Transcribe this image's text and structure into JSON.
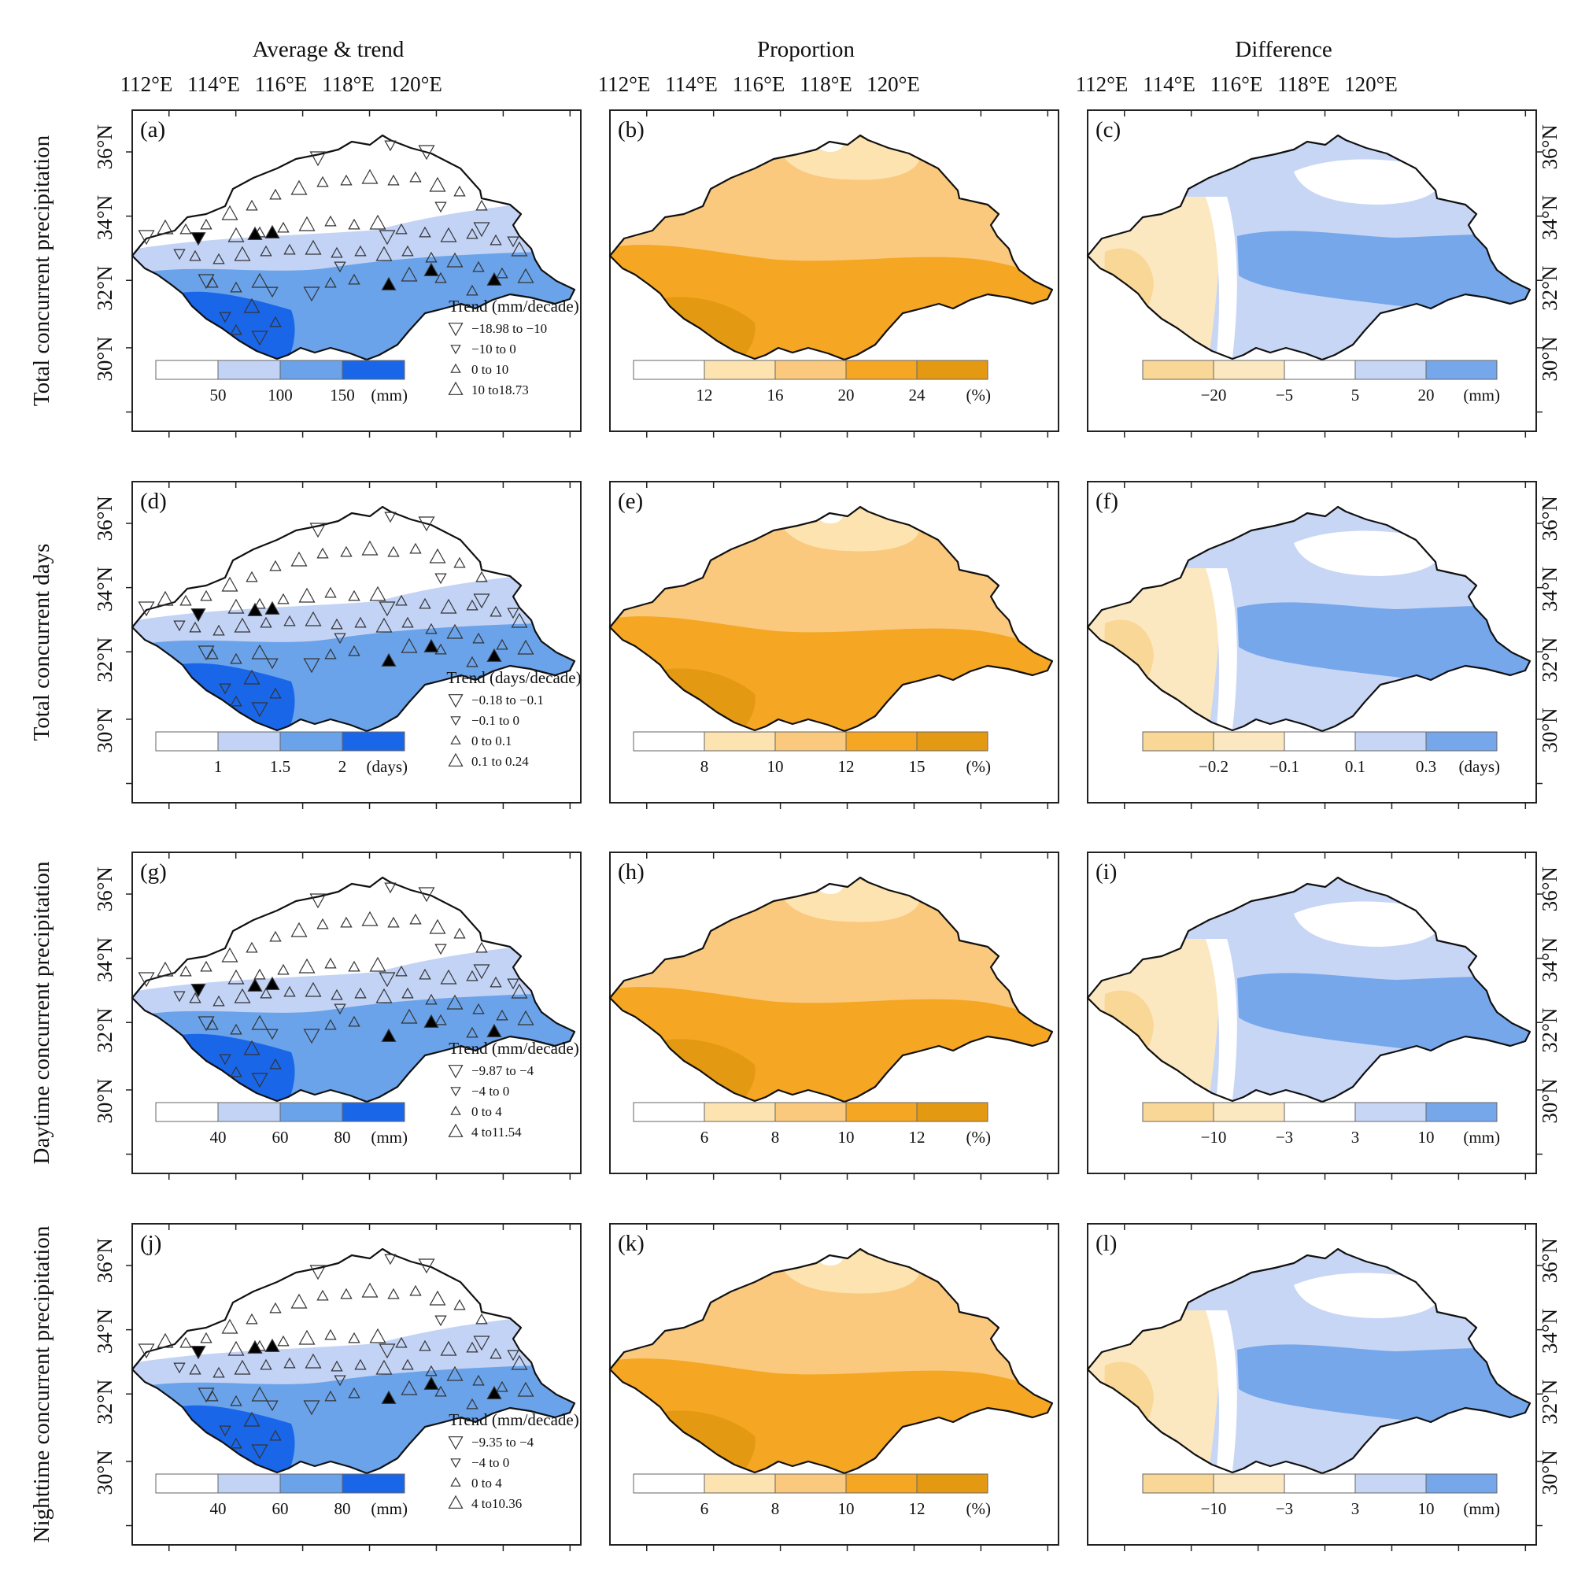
{
  "column_titles": [
    "Average & trend",
    "Proportion",
    "Difference"
  ],
  "row_titles": [
    "Total concurrent precipitation",
    "Total concurrent days",
    "Daytime concurrent precipitation",
    "Nighttime concurrent precipitation"
  ],
  "lon_ticks": [
    "112°E",
    "114°E",
    "116°E",
    "118°E",
    "120°E"
  ],
  "lat_ticks": [
    "36°N",
    "34°N",
    "32°N",
    "30°N"
  ],
  "colors": {
    "avg": [
      "#ffffff",
      "#c3d3f5",
      "#6aa3ea",
      "#1a66e8"
    ],
    "prop": [
      "#ffffff",
      "#fde3b0",
      "#fac97d",
      "#f5a623",
      "#e49912"
    ],
    "diff": [
      "#f9d796",
      "#fce8c0",
      "#ffffff",
      "#c8d6f5",
      "#76a7eb"
    ],
    "marker_sig": "#000000",
    "boundary": "#111111"
  },
  "panels": [
    {
      "label": "(a)",
      "kind": "avg",
      "ticks": [
        "50",
        "100",
        "150"
      ],
      "unit": "(mm)",
      "trend_title": "Trend (mm/decade)",
      "trend_items": [
        "−18.98 to −10",
        "−10 to 0",
        "0 to 10",
        "10 to18.73"
      ]
    },
    {
      "label": "(b)",
      "kind": "prop",
      "ticks": [
        "12",
        "16",
        "20",
        "24"
      ],
      "unit": "(%)"
    },
    {
      "label": "(c)",
      "kind": "diff",
      "ticks": [
        "−20",
        "−5",
        "5",
        "20"
      ],
      "unit": "(mm)"
    },
    {
      "label": "(d)",
      "kind": "avg",
      "ticks": [
        "1",
        "1.5",
        "2"
      ],
      "unit": "(days)",
      "trend_title": "Trend (days/decade)",
      "trend_items": [
        "−0.18 to −0.1",
        "−0.1 to 0",
        "0 to 0.1",
        "0.1 to 0.24"
      ]
    },
    {
      "label": "(e)",
      "kind": "prop",
      "ticks": [
        "8",
        "10",
        "12",
        "15"
      ],
      "unit": "(%)"
    },
    {
      "label": "(f)",
      "kind": "diff",
      "ticks": [
        "−0.2",
        "−0.1",
        "0.1",
        "0.3"
      ],
      "unit": "(days)"
    },
    {
      "label": "(g)",
      "kind": "avg",
      "ticks": [
        "40",
        "60",
        "80"
      ],
      "unit": "(mm)",
      "trend_title": "Trend (mm/decade)",
      "trend_items": [
        "−9.87 to −4",
        "−4 to 0",
        "0 to 4",
        "4 to11.54"
      ]
    },
    {
      "label": "(h)",
      "kind": "prop",
      "ticks": [
        "6",
        "8",
        "10",
        "12"
      ],
      "unit": "(%)"
    },
    {
      "label": "(i)",
      "kind": "diff",
      "ticks": [
        "−10",
        "−3",
        "3",
        "10"
      ],
      "unit": "(mm)"
    },
    {
      "label": "(j)",
      "kind": "avg",
      "ticks": [
        "40",
        "60",
        "80"
      ],
      "unit": "(mm)",
      "trend_title": "Trend (mm/decade)",
      "trend_items": [
        "−9.35 to −4",
        "−4 to 0",
        "0 to 4",
        "4 to10.36"
      ]
    },
    {
      "label": "(k)",
      "kind": "prop",
      "ticks": [
        "6",
        "8",
        "10",
        "12"
      ],
      "unit": "(%)"
    },
    {
      "label": "(l)",
      "kind": "diff",
      "ticks": [
        "−10",
        "−3",
        "3",
        "10"
      ],
      "unit": "(mm)"
    }
  ]
}
